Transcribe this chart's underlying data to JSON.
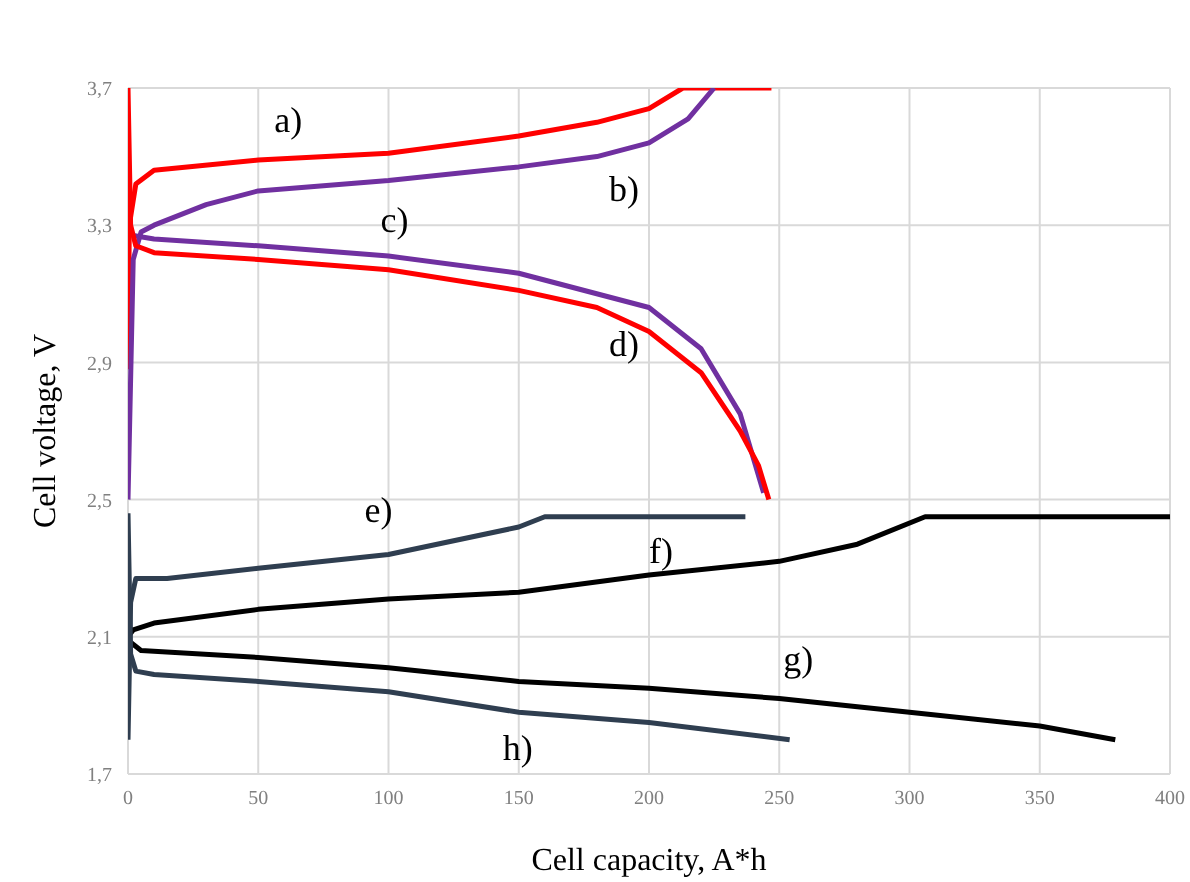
{
  "chart_data": {
    "type": "line",
    "xlabel": "Cell capacity, A*h",
    "ylabel": "Cell voltage, V",
    "xlim": [
      0,
      400
    ],
    "xticks": [
      0,
      50,
      100,
      150,
      200,
      250,
      300,
      350,
      400
    ],
    "ylim": [
      1.7,
      3.7
    ],
    "yticks": [
      {
        "value": 1.7,
        "label": "1,7"
      },
      {
        "value": 2.1,
        "label": "2,1"
      },
      {
        "value": 2.5,
        "label": "2,5"
      },
      {
        "value": 2.9,
        "label": "2,9"
      },
      {
        "value": 3.3,
        "label": "3,3"
      },
      {
        "value": 3.7,
        "label": "3,7"
      }
    ],
    "grid": true,
    "marker": "none",
    "line_style": "solid",
    "series": [
      {
        "name": "a)",
        "color": "#ff0000",
        "x": [
          0,
          0.5,
          3,
          10,
          50,
          100,
          150,
          180,
          200,
          213,
          247
        ],
        "values": [
          2.88,
          3.3,
          3.42,
          3.46,
          3.49,
          3.51,
          3.56,
          3.6,
          3.64,
          3.7,
          3.7
        ]
      },
      {
        "name": "b)",
        "color": "#7030a0",
        "x": [
          0,
          2,
          5,
          10,
          30,
          50,
          100,
          150,
          180,
          200,
          215,
          225
        ],
        "values": [
          2.5,
          3.2,
          3.28,
          3.3,
          3.36,
          3.4,
          3.43,
          3.47,
          3.5,
          3.54,
          3.61,
          3.7
        ]
      },
      {
        "name": "c)",
        "color": "#7030a0",
        "x": [
          2,
          10,
          50,
          100,
          150,
          200,
          220,
          235,
          244
        ],
        "values": [
          3.27,
          3.26,
          3.24,
          3.21,
          3.16,
          3.06,
          2.94,
          2.75,
          2.52
        ]
      },
      {
        "name": "d)",
        "color": "#ff0000",
        "x": [
          0,
          1,
          3,
          10,
          50,
          100,
          150,
          180,
          200,
          220,
          235,
          242,
          246
        ],
        "values": [
          3.7,
          3.3,
          3.24,
          3.22,
          3.2,
          3.17,
          3.11,
          3.06,
          2.99,
          2.87,
          2.7,
          2.6,
          2.5
        ]
      },
      {
        "name": "e)",
        "color": "#2f3e50",
        "x": [
          0,
          1,
          3,
          15,
          50,
          100,
          150,
          160,
          237
        ],
        "values": [
          1.8,
          2.2,
          2.27,
          2.27,
          2.3,
          2.34,
          2.42,
          2.45,
          2.45
        ]
      },
      {
        "name": "f)",
        "color": "#000000",
        "x": [
          0,
          2,
          10,
          50,
          100,
          150,
          200,
          250,
          280,
          306,
          400
        ],
        "values": [
          2.1,
          2.12,
          2.14,
          2.18,
          2.21,
          2.23,
          2.28,
          2.32,
          2.37,
          2.45,
          2.45
        ]
      },
      {
        "name": "g)",
        "color": "#000000",
        "x": [
          0,
          5,
          50,
          100,
          150,
          200,
          250,
          300,
          350,
          379
        ],
        "values": [
          2.09,
          2.06,
          2.04,
          2.01,
          1.97,
          1.95,
          1.92,
          1.88,
          1.84,
          1.8
        ]
      },
      {
        "name": "h)",
        "color": "#2f3e50",
        "x": [
          0,
          1,
          3,
          10,
          50,
          100,
          150,
          200,
          254
        ],
        "values": [
          2.46,
          2.05,
          2.0,
          1.99,
          1.97,
          1.94,
          1.88,
          1.85,
          1.8
        ]
      }
    ]
  }
}
